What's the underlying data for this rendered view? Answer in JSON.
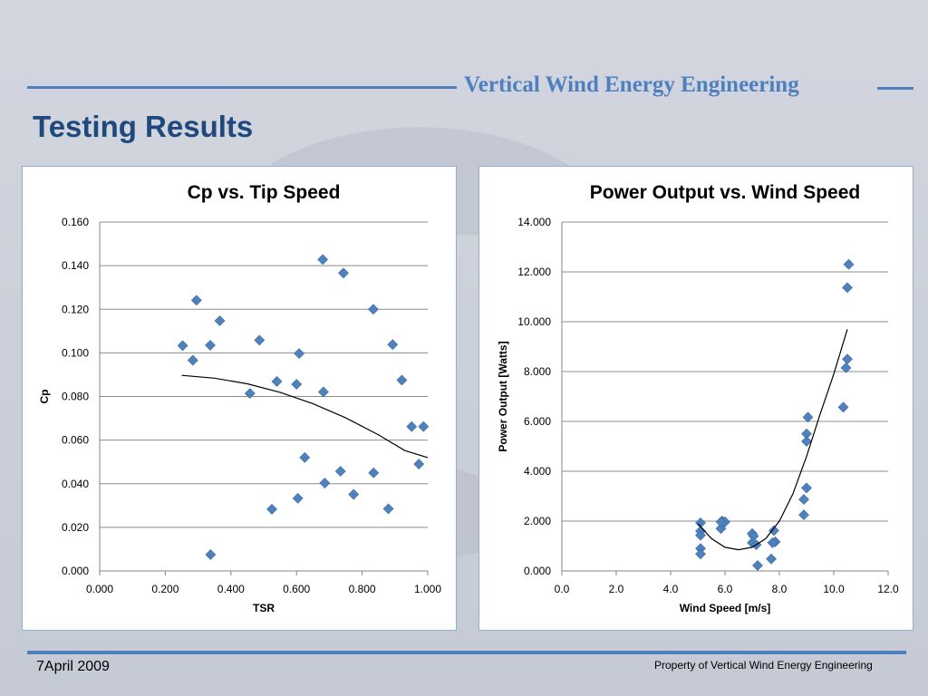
{
  "header": {
    "company": "Vertical Wind Energy Engineering",
    "title": "Testing Results"
  },
  "footer": {
    "date": "7April 2009",
    "property": "Property of Vertical Wind Energy Engineering"
  },
  "colors": {
    "accent": "#4e80bd",
    "title": "#1f497d",
    "marker": "#4f81bd"
  },
  "chart_data": [
    {
      "type": "scatter",
      "title": "Cp vs. Tip Speed",
      "xlabel": "TSR",
      "ylabel": "Cp",
      "xlim": [
        0,
        1
      ],
      "ylim": [
        0,
        0.16
      ],
      "x_ticks": [
        "0.000",
        "0.200",
        "0.400",
        "0.600",
        "0.800",
        "1.000"
      ],
      "y_ticks": [
        "0.000",
        "0.020",
        "0.040",
        "0.060",
        "0.080",
        "0.100",
        "0.120",
        "0.140",
        "0.160"
      ],
      "grid": "horizontal",
      "points": [
        [
          0.253,
          0.1033
        ],
        [
          0.284,
          0.0966
        ],
        [
          0.295,
          0.1241
        ],
        [
          0.337,
          0.1035
        ],
        [
          0.366,
          0.1147
        ],
        [
          0.458,
          0.0814
        ],
        [
          0.487,
          0.1058
        ],
        [
          0.54,
          0.0869
        ],
        [
          0.6,
          0.0856
        ],
        [
          0.608,
          0.0997
        ],
        [
          0.68,
          0.1428
        ],
        [
          0.682,
          0.0821
        ],
        [
          0.743,
          0.1366
        ],
        [
          0.834,
          0.12
        ],
        [
          0.893,
          0.1038
        ],
        [
          0.921,
          0.0875
        ],
        [
          0.951,
          0.0662
        ],
        [
          0.987,
          0.0662
        ],
        [
          0.973,
          0.049
        ],
        [
          0.625,
          0.052
        ],
        [
          0.734,
          0.0457
        ],
        [
          0.835,
          0.045
        ],
        [
          0.604,
          0.0333
        ],
        [
          0.686,
          0.0403
        ],
        [
          0.774,
          0.0351
        ],
        [
          0.525,
          0.0283
        ],
        [
          0.88,
          0.0285
        ],
        [
          0.338,
          0.0075
        ]
      ],
      "trendline": [
        [
          0.25,
          0.0897
        ],
        [
          0.35,
          0.0884
        ],
        [
          0.45,
          0.0858
        ],
        [
          0.55,
          0.0819
        ],
        [
          0.65,
          0.0767
        ],
        [
          0.75,
          0.0702
        ],
        [
          0.85,
          0.0624
        ],
        [
          0.93,
          0.0552
        ],
        [
          1.0,
          0.052
        ]
      ]
    },
    {
      "type": "scatter",
      "title": "Power Output vs. Wind Speed",
      "xlabel": "Wind Speed [m/s]",
      "ylabel": "Power Output [Watts]",
      "xlim": [
        0,
        12
      ],
      "ylim": [
        0,
        14
      ],
      "x_ticks": [
        "0.0",
        "2.0",
        "4.0",
        "6.0",
        "8.0",
        "10.0",
        "12.0"
      ],
      "y_ticks": [
        "0.000",
        "2.000",
        "4.000",
        "6.000",
        "8.000",
        "10.000",
        "12.000",
        "14.000"
      ],
      "grid": "horizontal",
      "points": [
        [
          5.1,
          1.93
        ],
        [
          5.1,
          1.6
        ],
        [
          5.1,
          1.43
        ],
        [
          5.1,
          0.9
        ],
        [
          5.1,
          0.68
        ],
        [
          5.85,
          1.7
        ],
        [
          5.9,
          2.0
        ],
        [
          6.0,
          1.97
        ],
        [
          5.85,
          1.97
        ],
        [
          7.0,
          1.5
        ],
        [
          7.05,
          1.4
        ],
        [
          7.0,
          1.13
        ],
        [
          7.15,
          1.05
        ],
        [
          7.2,
          0.22
        ],
        [
          7.7,
          0.48
        ],
        [
          7.8,
          1.62
        ],
        [
          7.85,
          1.17
        ],
        [
          7.75,
          1.13
        ],
        [
          8.9,
          2.25
        ],
        [
          8.9,
          2.87
        ],
        [
          9.0,
          3.33
        ],
        [
          9.0,
          5.5
        ],
        [
          9.0,
          5.2
        ],
        [
          9.05,
          6.17
        ],
        [
          10.35,
          6.57
        ],
        [
          10.45,
          8.15
        ],
        [
          10.5,
          8.5
        ],
        [
          10.5,
          11.37
        ],
        [
          10.55,
          12.3
        ]
      ],
      "trendline": [
        [
          5.0,
          1.9
        ],
        [
          5.5,
          1.3
        ],
        [
          6.0,
          0.95
        ],
        [
          6.5,
          0.85
        ],
        [
          7.0,
          0.95
        ],
        [
          7.5,
          1.3
        ],
        [
          8.0,
          2.0
        ],
        [
          8.5,
          3.1
        ],
        [
          9.0,
          4.6
        ],
        [
          9.5,
          6.3
        ],
        [
          10.0,
          7.9
        ],
        [
          10.5,
          9.7
        ]
      ]
    }
  ]
}
